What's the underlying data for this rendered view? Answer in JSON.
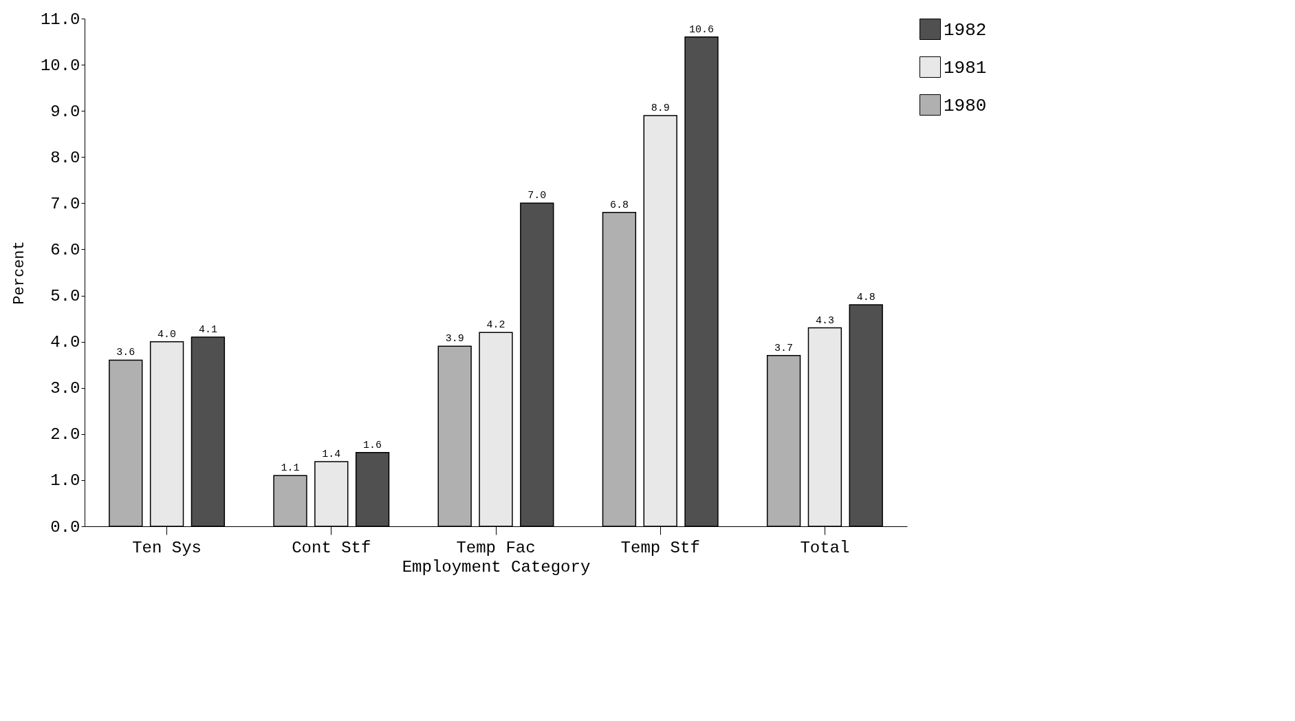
{
  "chart_data": {
    "type": "bar",
    "xlabel": "Employment Category",
    "ylabel": "Percent",
    "categories": [
      "Ten Sys",
      "Cont Stf",
      "Temp Fac",
      "Temp Stf",
      "Total"
    ],
    "series": [
      {
        "name": "1980",
        "color": "#b0b0b0",
        "values": [
          3.6,
          1.1,
          3.9,
          6.8,
          3.7
        ],
        "value_labels": [
          "3.6",
          "1.1",
          "3.9",
          "6.8",
          "3.7"
        ]
      },
      {
        "name": "1981",
        "color": "#e8e8e8",
        "values": [
          4.0,
          1.4,
          4.2,
          8.9,
          4.3
        ],
        "value_labels": [
          "4.0",
          "1.4",
          "4.2",
          "8.9",
          "4.3"
        ]
      },
      {
        "name": "1982",
        "color": "#505050",
        "values": [
          4.1,
          1.6,
          7.0,
          10.6,
          4.8
        ],
        "value_labels": [
          "4.1",
          "1.6",
          "7.0",
          "10.6",
          "4.8"
        ]
      }
    ],
    "ylim": [
      0,
      11
    ],
    "yticks": [
      {
        "value": 0,
        "label": "0.0"
      },
      {
        "value": 1,
        "label": "1.0"
      },
      {
        "value": 2,
        "label": "2.0"
      },
      {
        "value": 3,
        "label": "3.0"
      },
      {
        "value": 4,
        "label": "4.0"
      },
      {
        "value": 5,
        "label": "5.0"
      },
      {
        "value": 6,
        "label": "6.0"
      },
      {
        "value": 7,
        "label": "7.0"
      },
      {
        "value": 8,
        "label": "8.0"
      },
      {
        "value": 9,
        "label": "9.0"
      },
      {
        "value": 10,
        "label": "10.0"
      },
      {
        "value": 11,
        "label": "11.0"
      }
    ],
    "legend": "right",
    "grid": false
  }
}
